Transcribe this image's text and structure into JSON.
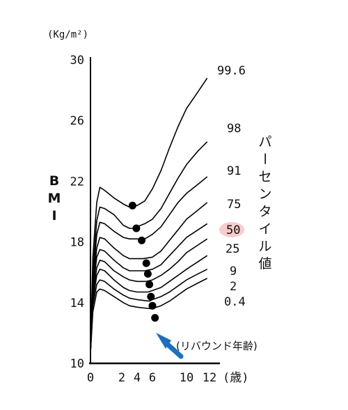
{
  "chart_data": {
    "type": "line",
    "title": "",
    "y_unit": "(Kg/m²)",
    "ylabel": "BMI",
    "x_unit": "(歳)",
    "vertical_label": "パーセンタイル値",
    "xlim": [
      0,
      12
    ],
    "ylim": [
      10,
      30
    ],
    "x_ticks": [
      "0",
      "2",
      "4",
      "6",
      "10",
      "12"
    ],
    "x_tick_values": [
      0,
      2,
      4,
      6,
      10,
      12
    ],
    "y_ticks": [
      "10",
      "14",
      "18",
      "22",
      "26",
      "30"
    ],
    "y_tick_values": [
      10,
      14,
      18,
      22,
      26,
      30
    ],
    "highlight_color": "#f6cccc",
    "dot_color": "#000000",
    "arrow_color": "#1a6fc0",
    "series": [
      {
        "name": "99.6",
        "points": [
          [
            0,
            10.7
          ],
          [
            0.15,
            17
          ],
          [
            0.4,
            20.6
          ],
          [
            0.6,
            21.6
          ],
          [
            0.9,
            21.4
          ],
          [
            1.5,
            20.9
          ],
          [
            2.2,
            20.5
          ],
          [
            3,
            20.3
          ],
          [
            4,
            20.4
          ],
          [
            5,
            20.7
          ],
          [
            6,
            21.5
          ],
          [
            7,
            22.7
          ],
          [
            8,
            24.2
          ],
          [
            9,
            25.6
          ],
          [
            10,
            26.8
          ],
          [
            11,
            27.9
          ],
          [
            11.8,
            28.8
          ]
        ]
      },
      {
        "name": "98",
        "points": [
          [
            0,
            10.7
          ],
          [
            0.15,
            16
          ],
          [
            0.4,
            19.4
          ],
          [
            0.6,
            20.3
          ],
          [
            0.9,
            20.2
          ],
          [
            1.5,
            19.8
          ],
          [
            2.2,
            19.1
          ],
          [
            3,
            18.9
          ],
          [
            3.5,
            18.9
          ],
          [
            4,
            19
          ],
          [
            5,
            19.2
          ],
          [
            6,
            19.5
          ],
          [
            7,
            20.2
          ],
          [
            8,
            21.2
          ],
          [
            9,
            22.2
          ],
          [
            10,
            23.1
          ],
          [
            11,
            24
          ],
          [
            11.8,
            24.6
          ]
        ]
      },
      {
        "name": "91",
        "points": [
          [
            0,
            10.7
          ],
          [
            0.15,
            15.5
          ],
          [
            0.4,
            18.5
          ],
          [
            0.6,
            19.3
          ],
          [
            0.9,
            19.2
          ],
          [
            1.5,
            18.7
          ],
          [
            2.2,
            18.3
          ],
          [
            3,
            18.2
          ],
          [
            4.3,
            18.2
          ],
          [
            5,
            18.2
          ],
          [
            6,
            18.5
          ],
          [
            7,
            19
          ],
          [
            8,
            19.8
          ],
          [
            9,
            20.6
          ],
          [
            10,
            21.2
          ],
          [
            11,
            21.8
          ],
          [
            11.8,
            22.3
          ]
        ]
      },
      {
        "name": "75",
        "points": [
          [
            0,
            10.7
          ],
          [
            0.15,
            15.1
          ],
          [
            0.4,
            17.6
          ],
          [
            0.6,
            18.3
          ],
          [
            0.9,
            18.2
          ],
          [
            1.5,
            17.6
          ],
          [
            2.2,
            17.1
          ],
          [
            3,
            16.9
          ],
          [
            4,
            16.9
          ],
          [
            4.8,
            16.9
          ],
          [
            6,
            17
          ],
          [
            7,
            17.4
          ],
          [
            8,
            18.1
          ],
          [
            9,
            18.8
          ],
          [
            10,
            19.5
          ],
          [
            11,
            20.1
          ],
          [
            11.8,
            20.6
          ]
        ]
      },
      {
        "name": "50",
        "points": [
          [
            0,
            10.7
          ],
          [
            0.15,
            14.8
          ],
          [
            0.4,
            17
          ],
          [
            0.6,
            17.5
          ],
          [
            0.9,
            17.4
          ],
          [
            1.5,
            16.8
          ],
          [
            2.2,
            16.3
          ],
          [
            3,
            16.1
          ],
          [
            4,
            16.1
          ],
          [
            5,
            16.1
          ],
          [
            6,
            16.2
          ],
          [
            7,
            16.5
          ],
          [
            8,
            17.1
          ],
          [
            9,
            17.7
          ],
          [
            10,
            18.3
          ],
          [
            11,
            18.8
          ],
          [
            11.8,
            19.2
          ]
        ]
      },
      {
        "name": "25",
        "points": [
          [
            0,
            10.7
          ],
          [
            0.15,
            14.5
          ],
          [
            0.4,
            16.3
          ],
          [
            0.6,
            16.8
          ],
          [
            0.9,
            16.7
          ],
          [
            1.5,
            16.1
          ],
          [
            2.2,
            15.7
          ],
          [
            3,
            15.5
          ],
          [
            4,
            15.4
          ],
          [
            5.2,
            15.4
          ],
          [
            6,
            15.5
          ],
          [
            7,
            15.8
          ],
          [
            8,
            16.2
          ],
          [
            9,
            16.7
          ],
          [
            10,
            17.3
          ],
          [
            11,
            17.8
          ],
          [
            11.8,
            18.2
          ]
        ]
      },
      {
        "name": "9",
        "points": [
          [
            0,
            10.7
          ],
          [
            0.15,
            14.1
          ],
          [
            0.4,
            15.8
          ],
          [
            0.6,
            16.2
          ],
          [
            0.9,
            16.1
          ],
          [
            1.5,
            15.5
          ],
          [
            2.2,
            15
          ],
          [
            3,
            14.8
          ],
          [
            4,
            14.7
          ],
          [
            5.4,
            14.7
          ],
          [
            6,
            14.8
          ],
          [
            7,
            15
          ],
          [
            8,
            15.4
          ],
          [
            9,
            15.8
          ],
          [
            10,
            16.2
          ],
          [
            11,
            16.7
          ],
          [
            11.8,
            17.1
          ]
        ]
      },
      {
        "name": "2",
        "points": [
          [
            0,
            10.7
          ],
          [
            0.15,
            13.8
          ],
          [
            0.4,
            15.2
          ],
          [
            0.6,
            15.5
          ],
          [
            0.9,
            15.4
          ],
          [
            1.5,
            14.9
          ],
          [
            2.2,
            14.5
          ],
          [
            3,
            14.3
          ],
          [
            4,
            14.2
          ],
          [
            5.6,
            14.1
          ],
          [
            6,
            14.2
          ],
          [
            7,
            14.4
          ],
          [
            8,
            14.7
          ],
          [
            9,
            15.1
          ],
          [
            10,
            15.5
          ],
          [
            11,
            15.9
          ],
          [
            11.8,
            16.2
          ]
        ]
      },
      {
        "name": "0.4",
        "points": [
          [
            0,
            10.7
          ],
          [
            0.15,
            13.4
          ],
          [
            0.4,
            14.7
          ],
          [
            0.6,
            14.9
          ],
          [
            0.9,
            14.8
          ],
          [
            1.5,
            14.4
          ],
          [
            2.2,
            14
          ],
          [
            3,
            13.8
          ],
          [
            4,
            13.7
          ],
          [
            5.8,
            13.6
          ],
          [
            6.5,
            13.7
          ],
          [
            7,
            13.8
          ],
          [
            8,
            14.1
          ],
          [
            9,
            14.5
          ],
          [
            10,
            14.9
          ],
          [
            11,
            15.3
          ],
          [
            11.8,
            15.6
          ]
        ]
      }
    ],
    "rebound_points": [
      [
        3.4,
        20.4
      ],
      [
        3.9,
        18.9
      ],
      [
        4.6,
        18.1
      ],
      [
        5.2,
        16.6
      ],
      [
        5.4,
        15.9
      ],
      [
        5.6,
        15.2
      ],
      [
        5.8,
        14.4
      ],
      [
        6,
        13.8
      ],
      [
        6.3,
        13
      ]
    ],
    "annotation": "(リバウンド年齢)",
    "highlighted_series": "50"
  }
}
